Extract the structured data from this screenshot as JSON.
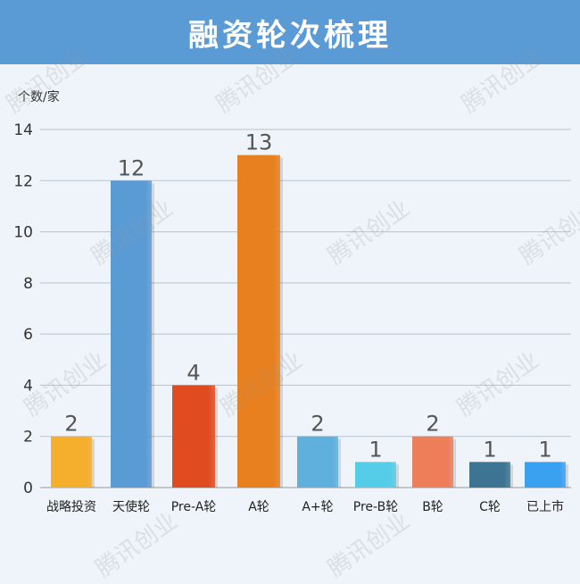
{
  "header": {
    "title": "融资轮次梳理"
  },
  "watermark": "腾讯创业",
  "chart_data": {
    "type": "bar",
    "title": "融资轮次梳理",
    "ylabel": "个数/家",
    "xlabel": "",
    "ylim": [
      0,
      14
    ],
    "yticks": [
      0,
      2,
      4,
      6,
      8,
      10,
      12,
      14
    ],
    "grid": true,
    "categories": [
      "战略投资",
      "天使轮",
      "Pre-A轮",
      "A轮",
      "A+轮",
      "Pre-B轮",
      "B轮",
      "C轮",
      "已上市"
    ],
    "values": [
      2,
      12,
      4,
      13,
      2,
      1,
      2,
      1,
      1
    ],
    "colors": [
      "#f6ae2d",
      "#5b9bd5",
      "#e04b1f",
      "#e8801f",
      "#5fb0dc",
      "#55cde8",
      "#ee7d5a",
      "#3d7393",
      "#3aa0f0"
    ]
  }
}
